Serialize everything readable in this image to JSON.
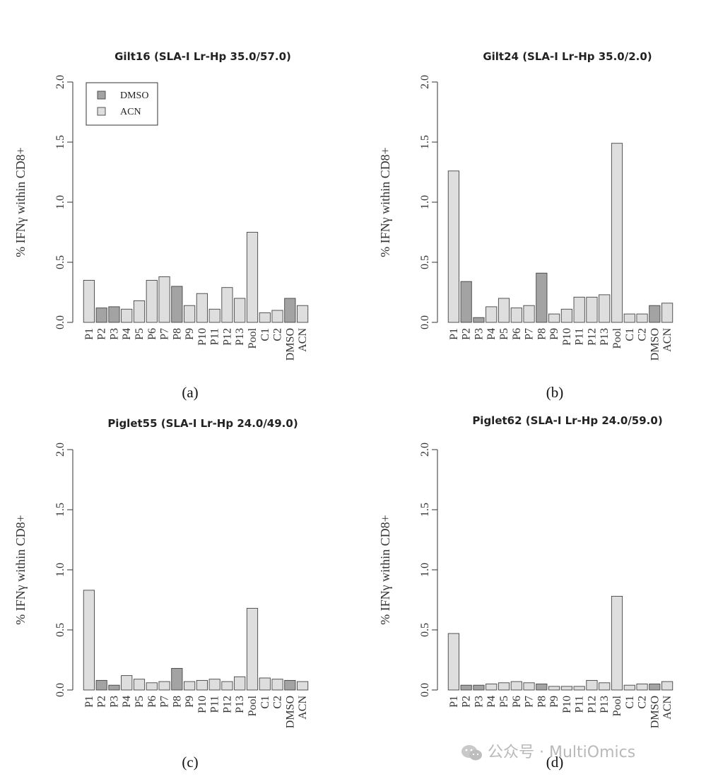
{
  "colors": {
    "dmso": "#a3a3a3",
    "acn": "#dedede",
    "stroke": "#444444"
  },
  "watermark": {
    "text": "公众号 · MultiOmics",
    "icon": "wechat-icon"
  },
  "chart_data": [
    {
      "type": "bar",
      "title": "Gilt16 (SLA-I Lr-Hp 35.0/57.0)",
      "panel_label": "(a)",
      "ylabel": "% IFNγ within CD8+",
      "ylim": [
        0,
        2.0
      ],
      "yticks": [
        "0.0",
        "0.5",
        "1.0",
        "1.5",
        "2.0"
      ],
      "legend": {
        "entries": [
          "DMSO",
          "ACN"
        ],
        "position": "top-left"
      },
      "categories": [
        "P1",
        "P2",
        "P3",
        "P4",
        "P5",
        "P6",
        "P7",
        "P8",
        "P9",
        "P10",
        "P11",
        "P12",
        "P13",
        "Pool",
        "C1",
        "C2",
        "DMSO",
        "ACN"
      ],
      "values": [
        0.35,
        0.12,
        0.13,
        0.11,
        0.18,
        0.35,
        0.38,
        0.3,
        0.14,
        0.24,
        0.11,
        0.29,
        0.2,
        0.75,
        0.08,
        0.1,
        0.2,
        0.14
      ],
      "groups": [
        "ACN",
        "DMSO",
        "DMSO",
        "ACN",
        "ACN",
        "ACN",
        "ACN",
        "DMSO",
        "ACN",
        "ACN",
        "ACN",
        "ACN",
        "ACN",
        "ACN",
        "ACN",
        "ACN",
        "DMSO",
        "ACN"
      ]
    },
    {
      "type": "bar",
      "title": "Gilt24 (SLA-I Lr-Hp 35.0/2.0)",
      "panel_label": "(b)",
      "ylabel": "% IFNγ within CD8+",
      "ylim": [
        0,
        2.0
      ],
      "yticks": [
        "0.0",
        "0.5",
        "1.0",
        "1.5",
        "2.0"
      ],
      "categories": [
        "P1",
        "P2",
        "P3",
        "P4",
        "P5",
        "P6",
        "P7",
        "P8",
        "P9",
        "P10",
        "P11",
        "P12",
        "P13",
        "Pool",
        "C1",
        "C2",
        "DMSO",
        "ACN"
      ],
      "values": [
        1.26,
        0.34,
        0.04,
        0.13,
        0.2,
        0.12,
        0.14,
        0.41,
        0.07,
        0.11,
        0.21,
        0.21,
        0.23,
        1.49,
        0.07,
        0.07,
        0.14,
        0.16
      ],
      "groups": [
        "ACN",
        "DMSO",
        "DMSO",
        "ACN",
        "ACN",
        "ACN",
        "ACN",
        "DMSO",
        "ACN",
        "ACN",
        "ACN",
        "ACN",
        "ACN",
        "ACN",
        "ACN",
        "ACN",
        "DMSO",
        "ACN"
      ]
    },
    {
      "type": "bar",
      "title": "Piglet55 (SLA-I Lr-Hp 24.0/49.0)",
      "panel_label": "(c)",
      "ylabel": "% IFNγ within CD8+",
      "ylim": [
        0,
        2.0
      ],
      "yticks": [
        "0.0",
        "0.5",
        "1.0",
        "1.5",
        "2.0"
      ],
      "categories": [
        "P1",
        "P2",
        "P3",
        "P4",
        "P5",
        "P6",
        "P7",
        "P8",
        "P9",
        "P10",
        "P11",
        "P12",
        "P13",
        "Pool",
        "C1",
        "C2",
        "DMSO",
        "ACN"
      ],
      "values": [
        0.83,
        0.08,
        0.04,
        0.12,
        0.09,
        0.06,
        0.07,
        0.18,
        0.07,
        0.08,
        0.09,
        0.07,
        0.11,
        0.68,
        0.1,
        0.09,
        0.08,
        0.07
      ],
      "groups": [
        "ACN",
        "DMSO",
        "DMSO",
        "ACN",
        "ACN",
        "ACN",
        "ACN",
        "DMSO",
        "ACN",
        "ACN",
        "ACN",
        "ACN",
        "ACN",
        "ACN",
        "ACN",
        "ACN",
        "DMSO",
        "ACN"
      ]
    },
    {
      "type": "bar",
      "title": "Piglet62 (SLA-I Lr-Hp 24.0/59.0)",
      "panel_label": "(d)",
      "ylabel": "% IFNγ within CD8+",
      "ylim": [
        0,
        2.0
      ],
      "yticks": [
        "0.0",
        "0.5",
        "1.0",
        "1.5",
        "2.0"
      ],
      "categories": [
        "P1",
        "P2",
        "P3",
        "P4",
        "P5",
        "P6",
        "P7",
        "P8",
        "P9",
        "P10",
        "P11",
        "P12",
        "P13",
        "Pool",
        "C1",
        "C2",
        "DMSO",
        "ACN"
      ],
      "values": [
        0.47,
        0.04,
        0.04,
        0.05,
        0.06,
        0.07,
        0.06,
        0.05,
        0.03,
        0.03,
        0.03,
        0.08,
        0.06,
        0.78,
        0.04,
        0.05,
        0.05,
        0.07
      ],
      "groups": [
        "ACN",
        "DMSO",
        "DMSO",
        "ACN",
        "ACN",
        "ACN",
        "ACN",
        "DMSO",
        "ACN",
        "ACN",
        "ACN",
        "ACN",
        "ACN",
        "ACN",
        "ACN",
        "ACN",
        "DMSO",
        "ACN"
      ]
    }
  ]
}
